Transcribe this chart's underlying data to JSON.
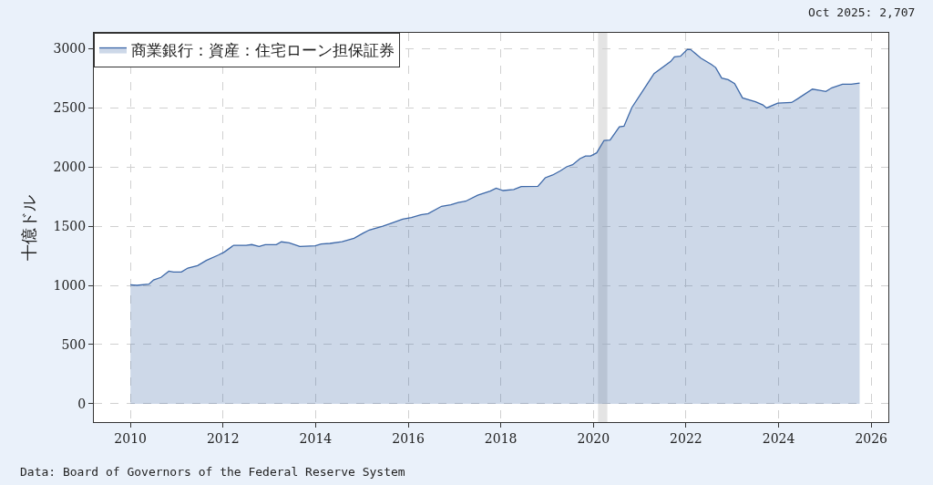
{
  "chart_data": {
    "type": "area",
    "ylabel": "十億ドル",
    "x": [
      2010.0,
      2010.14,
      2010.4,
      2010.5,
      2010.66,
      2010.83,
      2010.93,
      2011.1,
      2011.24,
      2011.45,
      2011.64,
      2011.9,
      2012.03,
      2012.23,
      2012.5,
      2012.62,
      2012.78,
      2012.91,
      2013.15,
      2013.26,
      2013.43,
      2013.66,
      2013.99,
      2014.12,
      2014.31,
      2014.57,
      2014.83,
      2015.03,
      2015.16,
      2015.45,
      2015.62,
      2015.88,
      2016.07,
      2016.27,
      2016.43,
      2016.72,
      2016.92,
      2017.08,
      2017.24,
      2017.5,
      2017.77,
      2017.9,
      2018.05,
      2018.28,
      2018.44,
      2018.8,
      2018.96,
      2019.12,
      2019.29,
      2019.42,
      2019.55,
      2019.71,
      2019.83,
      2019.94,
      2020.07,
      2020.23,
      2020.36,
      2020.56,
      2020.66,
      2020.83,
      2021.15,
      2021.31,
      2021.67,
      2021.75,
      2021.88,
      2022.03,
      2022.1,
      2022.32,
      2022.55,
      2022.64,
      2022.77,
      2022.91,
      2023.05,
      2023.22,
      2023.5,
      2023.66,
      2023.74,
      2023.98,
      2024.28,
      2024.41,
      2024.73,
      2024.89,
      2025.02,
      2025.15,
      2025.38,
      2025.57,
      2025.75
    ],
    "series": [
      {
        "name": "商業銀行：資産：住宅ローン担保証券",
        "color": "#3d68a8",
        "values": [
          1005,
          1000,
          1010,
          1046,
          1067,
          1120,
          1113,
          1113,
          1146,
          1167,
          1210,
          1256,
          1282,
          1338,
          1338,
          1344,
          1328,
          1344,
          1344,
          1367,
          1359,
          1328,
          1333,
          1349,
          1354,
          1369,
          1397,
          1441,
          1467,
          1500,
          1523,
          1559,
          1572,
          1595,
          1605,
          1667,
          1679,
          1700,
          1710,
          1761,
          1795,
          1820,
          1800,
          1808,
          1833,
          1836,
          1908,
          1931,
          1967,
          2000,
          2018,
          2069,
          2092,
          2092,
          2118,
          2223,
          2226,
          2338,
          2343,
          2500,
          2692,
          2787,
          2890,
          2928,
          2933,
          2992,
          2990,
          2918,
          2864,
          2838,
          2749,
          2736,
          2703,
          2582,
          2549,
          2523,
          2497,
          2538,
          2543,
          2574,
          2656,
          2646,
          2636,
          2667,
          2697,
          2697,
          2707
        ]
      }
    ],
    "xlim": [
      2009.21,
      2026.37
    ],
    "ylim": [
      -154,
      3131
    ],
    "xticks": [
      2010,
      2012,
      2014,
      2016,
      2018,
      2020,
      2022,
      2024,
      2026
    ],
    "yticks": [
      0,
      500,
      1000,
      1500,
      2000,
      2500,
      3000
    ],
    "bands": [
      {
        "axis": "x",
        "from": 2020.1,
        "to": 2020.3,
        "color": "#e4e4e4"
      }
    ],
    "annotations": [
      "Oct 2025: 2,707",
      "Data: Board of Governors of the Federal Reserve System"
    ],
    "grid": true,
    "legend": "top left"
  }
}
